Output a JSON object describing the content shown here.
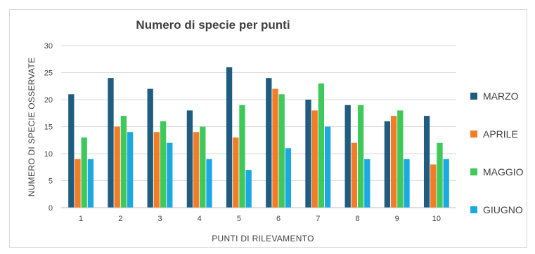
{
  "chart_data": {
    "type": "bar",
    "title": "Numero di specie per punti",
    "xlabel": "PUNTI DI RILEVAMENTO",
    "ylabel": "NUMERO DI SPECIE OSSERVATE",
    "categories": [
      "1",
      "2",
      "3",
      "4",
      "5",
      "6",
      "7",
      "8",
      "9",
      "10"
    ],
    "ylim": [
      0,
      30
    ],
    "yticks": [
      0,
      5,
      10,
      15,
      20,
      25,
      30
    ],
    "grid": true,
    "legend_position": "right",
    "series": [
      {
        "name": "MARZO",
        "color": "#1f5c7f",
        "values": [
          21,
          24,
          22,
          18,
          26,
          24,
          20,
          19,
          16,
          17
        ]
      },
      {
        "name": "APRILE",
        "color": "#f27d28",
        "values": [
          9,
          15,
          14,
          14,
          13,
          22,
          18,
          12,
          17,
          8
        ]
      },
      {
        "name": "MAGGIO",
        "color": "#3ec95a",
        "values": [
          13,
          17,
          16,
          15,
          19,
          21,
          23,
          19,
          18,
          12
        ]
      },
      {
        "name": "GIUGNO",
        "color": "#1ca9e2",
        "values": [
          9,
          14,
          12,
          9,
          7,
          11,
          15,
          9,
          9,
          9
        ]
      }
    ]
  }
}
